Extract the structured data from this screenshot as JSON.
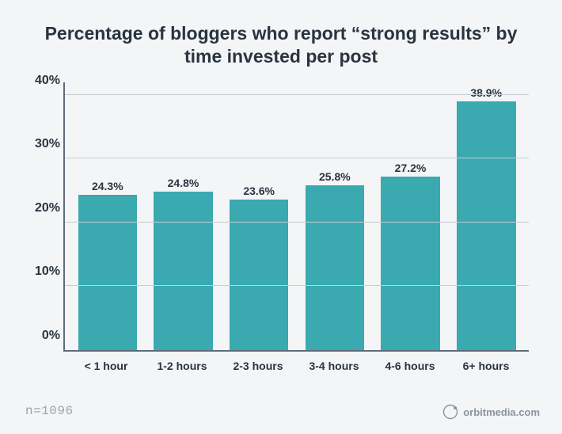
{
  "chart": {
    "type": "bar",
    "title": "Percentage of bloggers who report “strong results” by time invested per post",
    "title_fontsize": 23,
    "title_color": "#2a3440",
    "categories": [
      "< 1 hour",
      "1-2 hours",
      "2-3 hours",
      "3-4 hours",
      "4-6 hours",
      "6+ hours"
    ],
    "values": [
      24.3,
      24.8,
      23.6,
      25.8,
      27.2,
      38.9
    ],
    "value_labels": [
      "24.3%",
      "24.8%",
      "23.6%",
      "25.8%",
      "27.2%",
      "38.9%"
    ],
    "bar_color": "#3aa9b0",
    "yticks": [
      0,
      10,
      20,
      30,
      40
    ],
    "ytick_labels": [
      "0%",
      "10%",
      "20%",
      "30%",
      "40%"
    ],
    "ymax": 42,
    "axis_color": "#5f6b78",
    "grid_color": "#c6cdd4",
    "tick_fontsize": 16,
    "xlabel_fontsize": 14,
    "valuelabel_fontsize": 14,
    "text_color": "#2a3440",
    "background_color": "#f3f5f6"
  },
  "footer": {
    "sample": "n=1096",
    "sample_color": "#9aa3ad",
    "sample_fontsize": 16
  },
  "brand": {
    "text": "orbitmedia.com",
    "color": "#8b949e",
    "fontsize": 13
  }
}
